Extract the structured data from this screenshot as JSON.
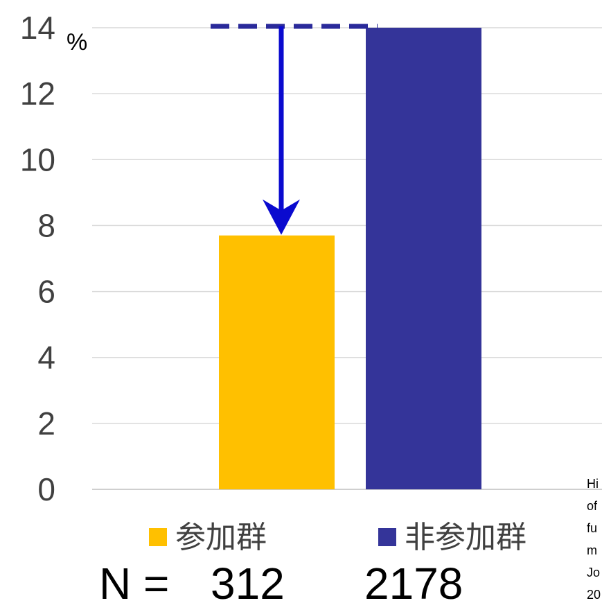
{
  "chart_data": {
    "type": "bar",
    "title": "",
    "ylabel": "%",
    "xlabel": "",
    "ylim": [
      0,
      14
    ],
    "yticks": [
      0,
      2,
      4,
      6,
      8,
      10,
      12,
      14
    ],
    "grid": true,
    "categories": [
      "参加群",
      "非参加群"
    ],
    "values": [
      7.7,
      14.0
    ],
    "colors": [
      "#FFC000",
      "#343499"
    ],
    "legend": {
      "placement": "bottom",
      "entries": [
        {
          "label": "参加群",
          "color": "#FFC000"
        },
        {
          "label": "非参加群",
          "color": "#343499"
        }
      ]
    },
    "sample_sizes": {
      "prefix": "N =",
      "values": [
        "312",
        "2178"
      ]
    },
    "annotation": {
      "from_value": 14.0,
      "to_value": 7.7,
      "line_color": "#2A2A9A",
      "arrow_color": "#0A0ACF"
    },
    "citation_fragments": [
      "Hi",
      "of",
      "fu",
      "m",
      "Jo",
      "20"
    ]
  }
}
